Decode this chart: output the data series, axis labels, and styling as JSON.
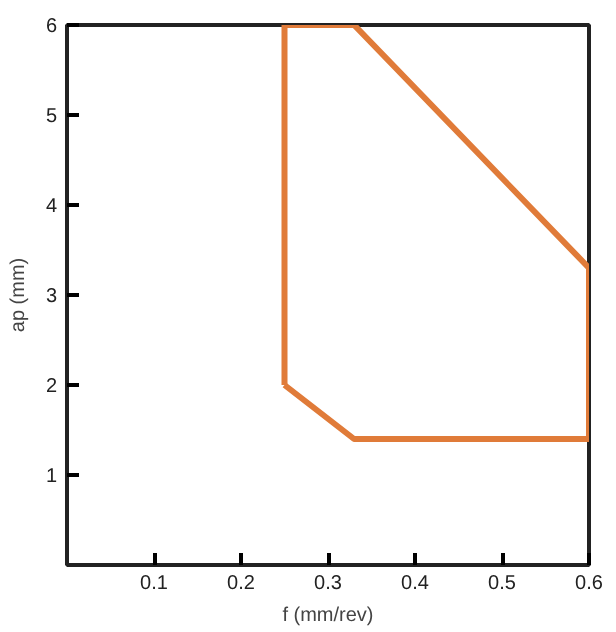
{
  "chart_data": {
    "type": "line",
    "xlabel": "f (mm/rev)",
    "ylabel": "ap (mm)",
    "xlim": [
      0,
      0.6
    ],
    "ylim": [
      0,
      6
    ],
    "xticks": [
      0.1,
      0.2,
      0.3,
      0.4,
      0.5,
      0.6
    ],
    "yticks": [
      1,
      2,
      3,
      4,
      5,
      6
    ],
    "grid": false,
    "marker": "none",
    "line_style": "solid",
    "series": [
      {
        "color": "#e07b39",
        "x": [
          0.25,
          0.33,
          0.6
        ],
        "values": [
          6,
          6,
          3.3
        ]
      },
      {
        "color": "#e07b39",
        "x": [
          0.25,
          0.33,
          0.6
        ],
        "values": [
          2,
          1.4,
          1.4
        ]
      },
      {
        "color": "#e07b39",
        "x": [
          0.25,
          0.25
        ],
        "values": [
          2,
          6
        ]
      },
      {
        "color": "#e07b39",
        "x": [
          0.6,
          0.6
        ],
        "values": [
          1.4,
          3.3
        ]
      }
    ]
  }
}
